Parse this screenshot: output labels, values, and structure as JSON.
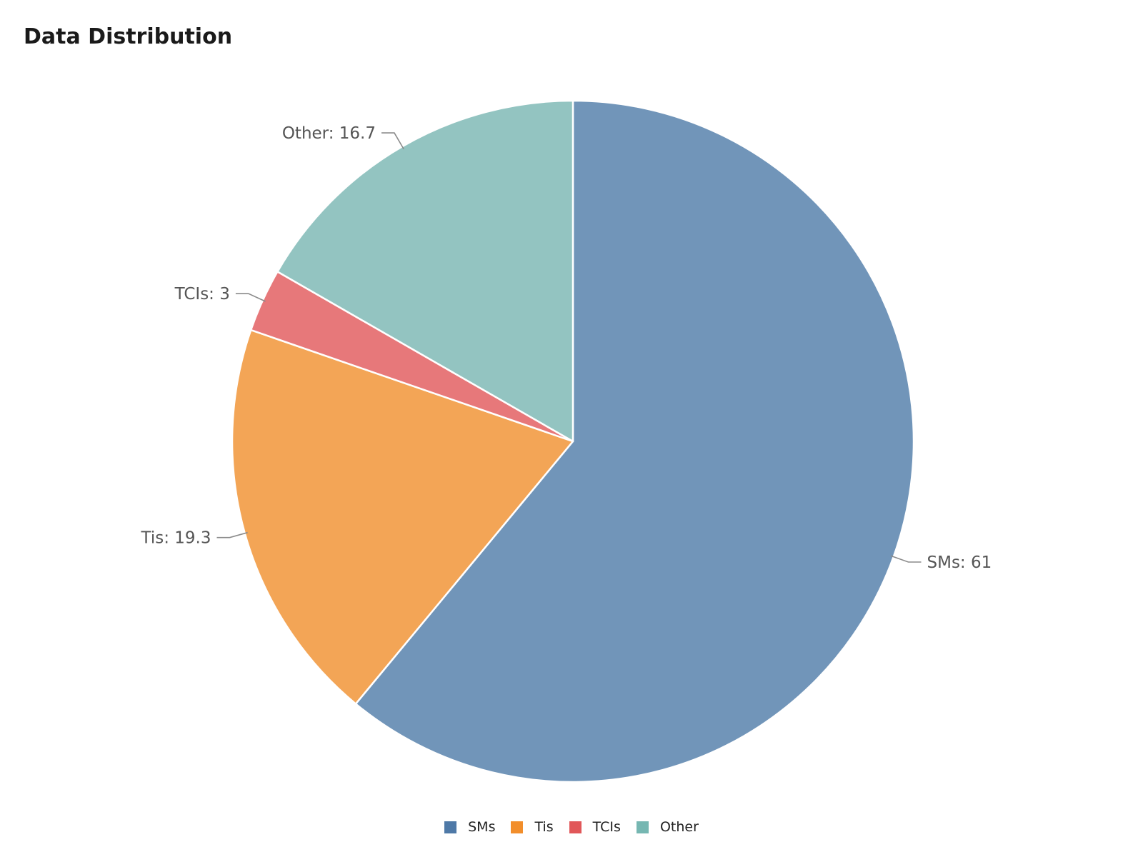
{
  "chart_data": {
    "type": "pie",
    "title": "Data Distribution",
    "categories": [
      "SMs",
      "Tis",
      "TCIs",
      "Other"
    ],
    "values": [
      61,
      19.3,
      3,
      16.7
    ],
    "slice_colors": [
      "#7195b9",
      "#f3a556",
      "#e7787a",
      "#93c4c1"
    ],
    "legend_colors": [
      "#4e79a7",
      "#f28e2b",
      "#e15759",
      "#76b7b2"
    ],
    "labels": [
      "SMs: 61",
      "Tis: 19.3",
      "TCIs: 3",
      "Other: 16.7"
    ],
    "legend": {
      "placement": "bottom",
      "entries": [
        "SMs",
        "Tis",
        "TCIs",
        "Other"
      ]
    }
  }
}
